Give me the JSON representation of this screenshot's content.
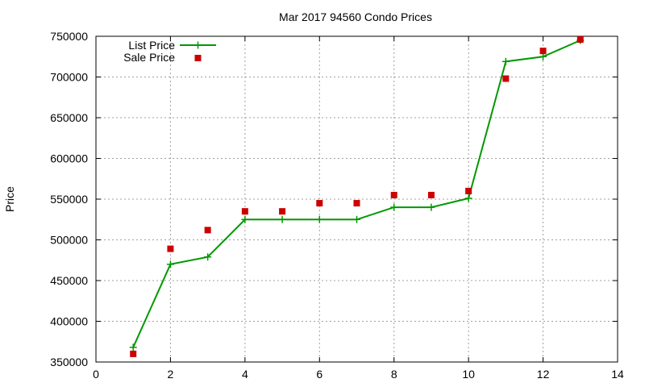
{
  "chart_data": {
    "type": "line",
    "title": "Mar 2017 94560 Condo Prices",
    "xlabel": "",
    "ylabel": "Price",
    "xlim": [
      0,
      14
    ],
    "ylim": [
      350000,
      750000
    ],
    "xticks": [
      0,
      2,
      4,
      6,
      8,
      10,
      12,
      14
    ],
    "yticks": [
      350000,
      400000,
      450000,
      500000,
      550000,
      600000,
      650000,
      700000,
      750000
    ],
    "grid": true,
    "legend_position": "top-left",
    "series": [
      {
        "name": "List Price",
        "style": "line-with-plus-markers",
        "color": "#009900",
        "x": [
          1,
          2,
          3,
          4,
          5,
          6,
          7,
          8,
          9,
          10,
          11,
          12,
          13
        ],
        "values": [
          368000,
          470000,
          479000,
          525000,
          525000,
          525000,
          525000,
          540000,
          540000,
          551000,
          719000,
          725000,
          745000
        ]
      },
      {
        "name": "Sale Price",
        "style": "square-markers",
        "color": "#cc0000",
        "x": [
          1,
          2,
          3,
          4,
          5,
          6,
          7,
          8,
          9,
          10,
          11,
          12,
          13
        ],
        "values": [
          360000,
          489000,
          512000,
          535000,
          535000,
          545000,
          545000,
          555000,
          555000,
          560000,
          698000,
          732000,
          746000
        ]
      }
    ]
  }
}
